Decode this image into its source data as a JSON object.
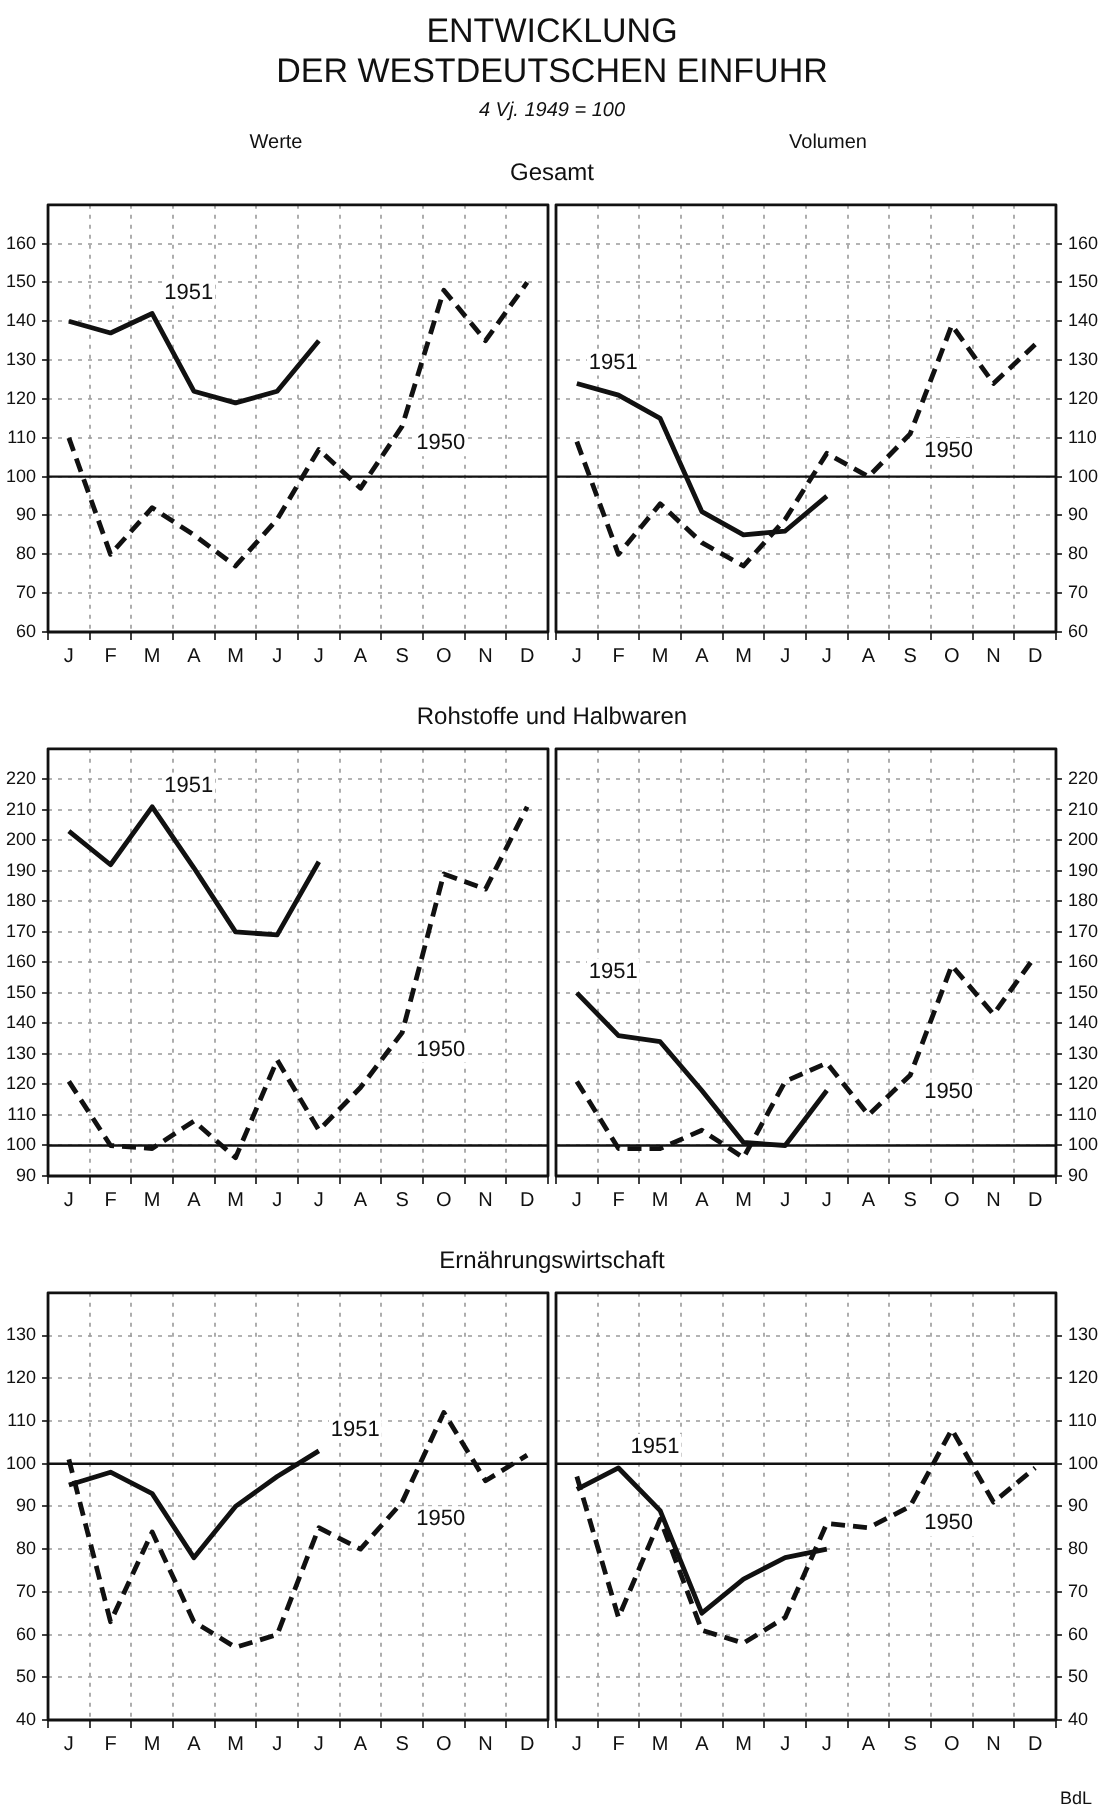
{
  "chart_data": [
    {
      "type": "other",
      "title": "ENTWICKLUNG\nDER WESTDEUTSCHEN EINFUHR",
      "subtitle": "4 Vj. 1949 = 100",
      "annotations": [
        "BdL"
      ]
    },
    {
      "type": "line",
      "title": "Gesamt",
      "subtitle": "Werte",
      "categories": [
        "J",
        "F",
        "M",
        "A",
        "M",
        "J",
        "J",
        "A",
        "S",
        "O",
        "N",
        "D"
      ],
      "ylim": [
        60,
        170
      ],
      "yticks": [
        60,
        70,
        80,
        90,
        100,
        110,
        120,
        130,
        140,
        150,
        160
      ],
      "grid": true,
      "ref_lines": [
        {
          "axis": "y",
          "value": 100
        }
      ],
      "series": [
        {
          "name": "1951",
          "color": "#111111",
          "line_style": "solid",
          "values": [
            140,
            137,
            142,
            122,
            119,
            122,
            135,
            null,
            null,
            null,
            null,
            null
          ]
        },
        {
          "name": "1950",
          "color": "#111111",
          "line_style": "dashed",
          "values": [
            110,
            80,
            92,
            85,
            77,
            89,
            107,
            97,
            113,
            148,
            135,
            150
          ]
        }
      ]
    },
    {
      "type": "line",
      "subtitle": "Volumen",
      "categories": [
        "J",
        "F",
        "M",
        "A",
        "M",
        "J",
        "J",
        "A",
        "S",
        "O",
        "N",
        "D"
      ],
      "ylim": [
        60,
        170
      ],
      "yticks": [
        60,
        70,
        80,
        90,
        100,
        110,
        120,
        130,
        140,
        150,
        160
      ],
      "grid": true,
      "ref_lines": [
        {
          "axis": "y",
          "value": 100
        }
      ],
      "series": [
        {
          "name": "1951",
          "color": "#111111",
          "line_style": "solid",
          "values": [
            124,
            121,
            115,
            91,
            85,
            86,
            95,
            null,
            null,
            null,
            null,
            null
          ]
        },
        {
          "name": "1950",
          "color": "#111111",
          "line_style": "dashed",
          "values": [
            109,
            80,
            93,
            83,
            77,
            89,
            106,
            100,
            111,
            139,
            124,
            134
          ]
        }
      ]
    },
    {
      "type": "line",
      "title": "Rohstoffe und Halbwaren",
      "categories": [
        "J",
        "F",
        "M",
        "A",
        "M",
        "J",
        "J",
        "A",
        "S",
        "O",
        "N",
        "D"
      ],
      "ylim": [
        90,
        230
      ],
      "yticks": [
        90,
        100,
        110,
        120,
        130,
        140,
        150,
        160,
        170,
        180,
        190,
        200,
        210,
        220
      ],
      "grid": true,
      "ref_lines": [
        {
          "axis": "y",
          "value": 100
        }
      ],
      "series": [
        {
          "name": "1951",
          "color": "#111111",
          "line_style": "solid",
          "values": [
            203,
            192,
            211,
            191,
            170,
            169,
            193,
            null,
            null,
            null,
            null,
            null
          ]
        },
        {
          "name": "1950",
          "color": "#111111",
          "line_style": "dashed",
          "values": [
            121,
            100,
            99,
            108,
            96,
            128,
            105,
            119,
            137,
            189,
            184,
            211
          ]
        }
      ]
    },
    {
      "type": "line",
      "categories": [
        "J",
        "F",
        "M",
        "A",
        "M",
        "J",
        "J",
        "A",
        "S",
        "O",
        "N",
        "D"
      ],
      "ylim": [
        90,
        230
      ],
      "yticks": [
        90,
        100,
        110,
        120,
        130,
        140,
        150,
        160,
        170,
        180,
        190,
        200,
        210,
        220
      ],
      "grid": true,
      "ref_lines": [
        {
          "axis": "y",
          "value": 100
        }
      ],
      "series": [
        {
          "name": "1951",
          "color": "#111111",
          "line_style": "solid",
          "values": [
            150,
            136,
            134,
            118,
            101,
            100,
            118,
            null,
            null,
            null,
            null,
            null
          ]
        },
        {
          "name": "1950",
          "color": "#111111",
          "line_style": "dashed",
          "values": [
            121,
            99,
            99,
            105,
            96,
            121,
            127,
            110,
            123,
            159,
            143,
            162
          ]
        }
      ]
    },
    {
      "type": "line",
      "title": "Ernährungswirtschaft",
      "categories": [
        "J",
        "F",
        "M",
        "A",
        "M",
        "J",
        "J",
        "A",
        "S",
        "O",
        "N",
        "D"
      ],
      "ylim": [
        40,
        140
      ],
      "yticks": [
        40,
        50,
        60,
        70,
        80,
        90,
        100,
        110,
        120,
        130
      ],
      "grid": true,
      "ref_lines": [
        {
          "axis": "y",
          "value": 100
        }
      ],
      "series": [
        {
          "name": "1951",
          "color": "#111111",
          "line_style": "solid",
          "values": [
            95,
            98,
            93,
            78,
            90,
            97,
            103,
            null,
            null,
            null,
            null,
            null
          ]
        },
        {
          "name": "1950",
          "color": "#111111",
          "line_style": "dashed",
          "values": [
            101,
            63,
            84,
            63,
            57,
            60,
            85,
            80,
            91,
            112,
            96,
            102
          ]
        }
      ]
    },
    {
      "type": "line",
      "categories": [
        "J",
        "F",
        "M",
        "A",
        "M",
        "J",
        "J",
        "A",
        "S",
        "O",
        "N",
        "D"
      ],
      "ylim": [
        40,
        140
      ],
      "yticks": [
        40,
        50,
        60,
        70,
        80,
        90,
        100,
        110,
        120,
        130
      ],
      "grid": true,
      "ref_lines": [
        {
          "axis": "y",
          "value": 100
        }
      ],
      "series": [
        {
          "name": "1951",
          "color": "#111111",
          "line_style": "solid",
          "values": [
            94,
            99,
            89,
            65,
            73,
            78,
            80,
            null,
            null,
            null,
            null,
            null
          ]
        },
        {
          "name": "1950",
          "color": "#111111",
          "line_style": "dashed",
          "values": [
            97,
            64,
            87,
            61,
            58,
            64,
            86,
            85,
            90,
            108,
            91,
            99
          ]
        }
      ]
    }
  ]
}
